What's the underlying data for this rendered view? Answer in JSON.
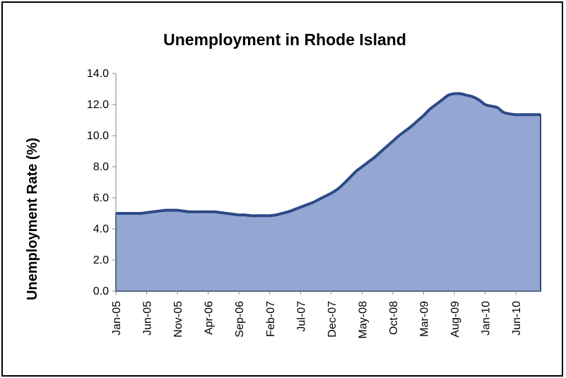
{
  "chart_data": {
    "type": "area",
    "title": "Unemployment in Rhode Island",
    "xlabel": "",
    "ylabel": "Unemployment Rate (%)",
    "ylim": [
      0,
      14
    ],
    "y_ticks": [
      "0.0",
      "2.0",
      "4.0",
      "6.0",
      "8.0",
      "10.0",
      "12.0",
      "14.0"
    ],
    "x_tick_labels": [
      "Jan-05",
      "Jun-05",
      "Nov-05",
      "Apr-06",
      "Sep-06",
      "Feb-07",
      "Jul-07",
      "Dec-07",
      "May-08",
      "Oct-08",
      "Mar-09",
      "Aug-09",
      "Jan-10",
      "Jun-10"
    ],
    "x": [
      "Jan-05",
      "Feb-05",
      "Mar-05",
      "Apr-05",
      "May-05",
      "Jun-05",
      "Jul-05",
      "Aug-05",
      "Sep-05",
      "Oct-05",
      "Nov-05",
      "Dec-05",
      "Jan-06",
      "Feb-06",
      "Mar-06",
      "Apr-06",
      "May-06",
      "Jun-06",
      "Jul-06",
      "Aug-06",
      "Sep-06",
      "Oct-06",
      "Nov-06",
      "Dec-06",
      "Jan-07",
      "Feb-07",
      "Mar-07",
      "Apr-07",
      "May-07",
      "Jun-07",
      "Jul-07",
      "Aug-07",
      "Sep-07",
      "Oct-07",
      "Nov-07",
      "Dec-07",
      "Jan-08",
      "Feb-08",
      "Mar-08",
      "Apr-08",
      "May-08",
      "Jun-08",
      "Jul-08",
      "Aug-08",
      "Sep-08",
      "Oct-08",
      "Nov-08",
      "Dec-08",
      "Jan-09",
      "Feb-09",
      "Mar-09",
      "Apr-09",
      "May-09",
      "Jun-09",
      "Jul-09",
      "Aug-09",
      "Sep-09",
      "Oct-09",
      "Nov-09",
      "Dec-09",
      "Jan-10",
      "Feb-10",
      "Mar-10",
      "Apr-10",
      "May-10",
      "Jun-10",
      "Jul-10",
      "Aug-10",
      "Sep-10",
      "Oct-10"
    ],
    "series": [
      {
        "values": [
          5.0,
          5.0,
          5.0,
          5.0,
          5.0,
          5.05,
          5.1,
          5.15,
          5.2,
          5.2,
          5.2,
          5.15,
          5.1,
          5.1,
          5.1,
          5.1,
          5.1,
          5.05,
          5.0,
          4.95,
          4.9,
          4.9,
          4.85,
          4.85,
          4.85,
          4.85,
          4.9,
          5.0,
          5.1,
          5.25,
          5.4,
          5.55,
          5.7,
          5.9,
          6.1,
          6.3,
          6.55,
          6.9,
          7.3,
          7.7,
          8.0,
          8.3,
          8.6,
          8.95,
          9.3,
          9.65,
          10.0,
          10.3,
          10.6,
          10.95,
          11.3,
          11.7,
          12.0,
          12.3,
          12.6,
          12.7,
          12.7,
          12.6,
          12.5,
          12.3,
          12.0,
          11.9,
          11.8,
          11.5,
          11.4,
          11.35,
          11.35,
          11.35,
          11.35,
          11.35
        ]
      }
    ],
    "colors": {
      "fill": "#94A7D2",
      "line": "#2C4A87"
    },
    "grid": false,
    "legend": "none"
  }
}
